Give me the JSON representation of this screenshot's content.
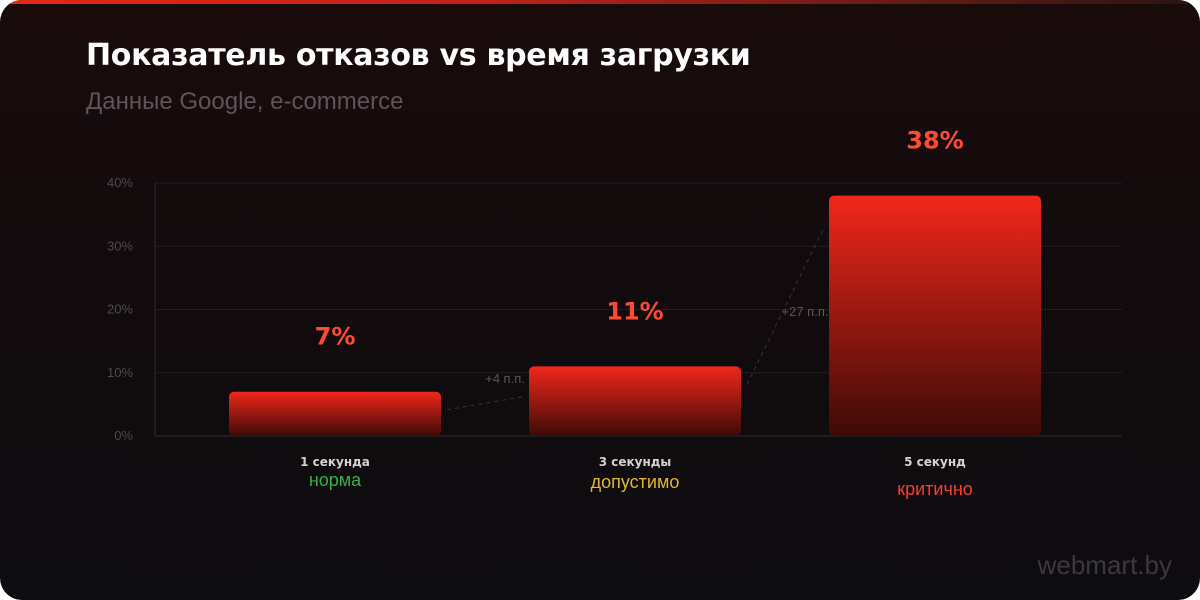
{
  "header": {
    "title": "Показатель отказов vs время загрузки",
    "subtitle": "Данные Google, e-commerce"
  },
  "footer": {
    "watermark": "webmart.by"
  },
  "colors": {
    "bar_top": "#f2271a",
    "bar_bottom": "#3d0a08",
    "value_label": "#ff4b30",
    "status_ok": "#35b145",
    "status_warn": "#e0b72a",
    "status_bad": "#ff3b2a"
  },
  "chart_data": {
    "type": "bar",
    "categories": [
      "1 секунда",
      "3 секунды",
      "5 секунд"
    ],
    "values": [
      7,
      11,
      38
    ],
    "value_labels": [
      "7%",
      "11%",
      "38%"
    ],
    "status_labels": [
      "норма",
      "допустимо",
      "критично"
    ],
    "deltas": [
      "+4 п.п.",
      "+27 п.п."
    ],
    "yticks": [
      "0%",
      "10%",
      "20%",
      "30%",
      "40%"
    ],
    "ylim": [
      0,
      40
    ],
    "grid": true,
    "title": "Показатель отказов vs время загрузки",
    "subtitle": "Данные Google, e-commerce",
    "xlabel": "",
    "ylabel": ""
  }
}
